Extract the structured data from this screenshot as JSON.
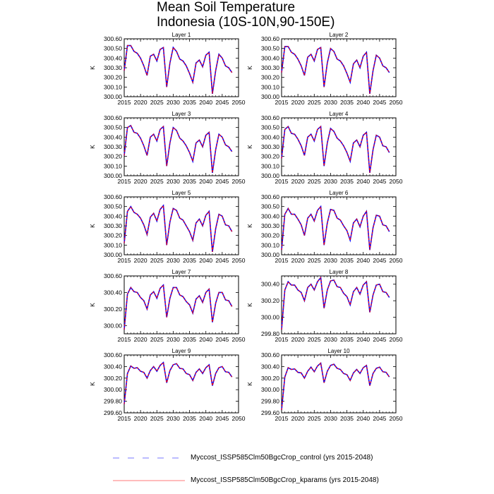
{
  "title": "Mean Soil Temperature",
  "subtitle": "Indonesia (10S-10N,90-150E)",
  "legend": [
    {
      "label": "Myccost_ISSP585Clm50BgcCrop_control (yrs 2015-2048)",
      "color": "#0000ff",
      "style": "dashed"
    },
    {
      "label": "Myccost_ISSP585Clm50BgcCrop_kparams (yrs 2015-2048)",
      "color": "#ff0000",
      "style": "solid"
    }
  ],
  "chart_data": {
    "type": "line",
    "ylabel": "K",
    "x": [
      2015,
      2016,
      2017,
      2018,
      2019,
      2020,
      2021,
      2022,
      2023,
      2024,
      2025,
      2026,
      2027,
      2028,
      2029,
      2030,
      2031,
      2032,
      2033,
      2034,
      2035,
      2036,
      2037,
      2038,
      2039,
      2040,
      2041,
      2042,
      2043,
      2044,
      2045,
      2046,
      2047,
      2048
    ],
    "xlim": [
      2015,
      2050
    ],
    "xticks": [
      "2015",
      "2020",
      "2025",
      "2030",
      "2035",
      "2040",
      "2045",
      "2050"
    ],
    "panels": [
      {
        "title": "Layer 1",
        "ylim": [
          300.0,
          300.6
        ],
        "yticks": [
          "300.00",
          "300.10",
          "300.20",
          "300.30",
          "300.40",
          "300.50",
          "300.60"
        ],
        "values": [
          300.27,
          300.53,
          300.53,
          300.47,
          300.45,
          300.4,
          300.32,
          300.22,
          300.42,
          300.44,
          300.37,
          300.49,
          300.51,
          300.1,
          300.35,
          300.51,
          300.47,
          300.39,
          300.37,
          300.32,
          300.24,
          300.15,
          300.35,
          300.38,
          300.31,
          300.43,
          300.46,
          300.03,
          300.27,
          300.44,
          300.4,
          300.32,
          300.3,
          300.25
        ]
      },
      {
        "title": "Layer 2",
        "ylim": [
          300.0,
          300.6
        ],
        "yticks": [
          "300.00",
          "300.10",
          "300.20",
          "300.30",
          "300.40",
          "300.50",
          "300.60"
        ],
        "values": [
          300.25,
          300.52,
          300.52,
          300.46,
          300.44,
          300.39,
          300.32,
          300.22,
          300.41,
          300.44,
          300.37,
          300.49,
          300.51,
          300.1,
          300.35,
          300.5,
          300.47,
          300.39,
          300.37,
          300.32,
          300.24,
          300.15,
          300.34,
          300.38,
          300.3,
          300.42,
          300.46,
          300.03,
          300.27,
          300.43,
          300.4,
          300.32,
          300.3,
          300.25
        ]
      },
      {
        "title": "Layer 3",
        "ylim": [
          300.0,
          300.6
        ],
        "yticks": [
          "300.00",
          "300.10",
          "300.20",
          "300.30",
          "300.40",
          "300.50",
          "300.60"
        ],
        "values": [
          300.21,
          300.5,
          300.52,
          300.45,
          300.44,
          300.39,
          300.31,
          300.21,
          300.4,
          300.43,
          300.36,
          300.48,
          300.51,
          300.1,
          300.34,
          300.5,
          300.47,
          300.39,
          300.36,
          300.31,
          300.24,
          300.15,
          300.34,
          300.37,
          300.3,
          300.42,
          300.45,
          300.03,
          300.27,
          300.43,
          300.4,
          300.32,
          300.3,
          300.25
        ]
      },
      {
        "title": "Layer 4",
        "ylim": [
          300.0,
          300.6
        ],
        "yticks": [
          "300.00",
          "300.10",
          "300.20",
          "300.30",
          "300.40",
          "300.50",
          "300.60"
        ],
        "values": [
          300.18,
          300.48,
          300.51,
          300.44,
          300.43,
          300.38,
          300.31,
          300.21,
          300.4,
          300.43,
          300.36,
          300.48,
          300.51,
          300.1,
          300.34,
          300.49,
          300.46,
          300.39,
          300.36,
          300.31,
          300.24,
          300.15,
          300.34,
          300.37,
          300.3,
          300.42,
          300.45,
          300.03,
          300.27,
          300.42,
          300.4,
          300.31,
          300.3,
          300.24
        ]
      },
      {
        "title": "Layer 5",
        "ylim": [
          300.0,
          300.6
        ],
        "yticks": [
          "300.00",
          "300.10",
          "300.20",
          "300.30",
          "300.40",
          "300.50",
          "300.60"
        ],
        "values": [
          300.12,
          300.45,
          300.5,
          300.44,
          300.42,
          300.38,
          300.31,
          300.21,
          300.39,
          300.43,
          300.35,
          300.47,
          300.51,
          300.1,
          300.34,
          300.48,
          300.46,
          300.38,
          300.36,
          300.3,
          300.24,
          300.15,
          300.33,
          300.37,
          300.3,
          300.41,
          300.45,
          300.03,
          300.27,
          300.42,
          300.4,
          300.31,
          300.3,
          300.24
        ]
      },
      {
        "title": "Layer 6",
        "ylim": [
          300.0,
          300.6
        ],
        "yticks": [
          "300.00",
          "300.10",
          "300.20",
          "300.30",
          "300.40",
          "300.50",
          "300.60"
        ],
        "values": [
          300.05,
          300.42,
          300.48,
          300.42,
          300.42,
          300.37,
          300.31,
          300.2,
          300.38,
          300.42,
          300.35,
          300.46,
          300.5,
          300.1,
          300.33,
          300.47,
          300.46,
          300.38,
          300.36,
          300.3,
          300.25,
          300.15,
          300.33,
          300.37,
          300.29,
          300.4,
          300.45,
          300.05,
          300.28,
          300.41,
          300.4,
          300.31,
          300.3,
          300.24
        ]
      },
      {
        "title": "Layer 7",
        "ylim": [
          299.9,
          300.6
        ],
        "yticks": [
          "300.00",
          "300.20",
          "300.40",
          "300.60"
        ],
        "values": [
          299.95,
          300.38,
          300.46,
          300.41,
          300.4,
          300.34,
          300.3,
          300.2,
          300.37,
          300.41,
          300.33,
          300.45,
          300.49,
          300.1,
          300.33,
          300.46,
          300.46,
          300.37,
          300.35,
          300.29,
          300.25,
          300.15,
          300.32,
          300.36,
          300.28,
          300.4,
          300.44,
          300.04,
          300.27,
          300.4,
          300.4,
          300.31,
          300.3,
          300.23
        ]
      },
      {
        "title": "Layer 8",
        "ylim": [
          299.8,
          300.5
        ],
        "yticks": [
          "299.80",
          "300.00",
          "300.20",
          "300.40"
        ],
        "values": [
          299.85,
          300.33,
          300.43,
          300.39,
          300.39,
          300.33,
          300.3,
          300.2,
          300.36,
          300.4,
          300.33,
          300.43,
          300.48,
          300.11,
          300.33,
          300.44,
          300.45,
          300.37,
          300.36,
          300.29,
          300.25,
          300.15,
          300.31,
          300.36,
          300.28,
          300.39,
          300.43,
          300.06,
          300.27,
          300.39,
          300.4,
          300.31,
          300.3,
          300.24
        ]
      },
      {
        "title": "Layer 9",
        "ylim": [
          299.6,
          300.6
        ],
        "yticks": [
          "299.60",
          "299.80",
          "300.00",
          "300.20",
          "300.40",
          "300.60"
        ],
        "values": [
          299.75,
          300.28,
          300.41,
          300.37,
          300.38,
          300.32,
          300.3,
          300.2,
          300.33,
          300.4,
          300.32,
          300.42,
          300.47,
          300.12,
          300.33,
          300.43,
          300.45,
          300.37,
          300.36,
          300.28,
          300.26,
          300.16,
          300.3,
          300.36,
          300.28,
          300.38,
          300.43,
          300.07,
          300.28,
          300.38,
          300.4,
          300.31,
          300.3,
          300.22
        ]
      },
      {
        "title": "Layer 10",
        "ylim": [
          299.6,
          300.6
        ],
        "yticks": [
          "299.60",
          "299.80",
          "300.00",
          "300.20",
          "300.40",
          "300.60"
        ],
        "values": [
          299.65,
          300.22,
          300.38,
          300.35,
          300.36,
          300.3,
          300.29,
          300.2,
          300.32,
          300.39,
          300.31,
          300.41,
          300.46,
          300.12,
          300.32,
          300.42,
          300.44,
          300.37,
          300.35,
          300.28,
          300.26,
          300.16,
          300.29,
          300.35,
          300.28,
          300.38,
          300.42,
          300.07,
          300.28,
          300.37,
          300.39,
          300.31,
          300.3,
          300.22
        ]
      }
    ]
  }
}
